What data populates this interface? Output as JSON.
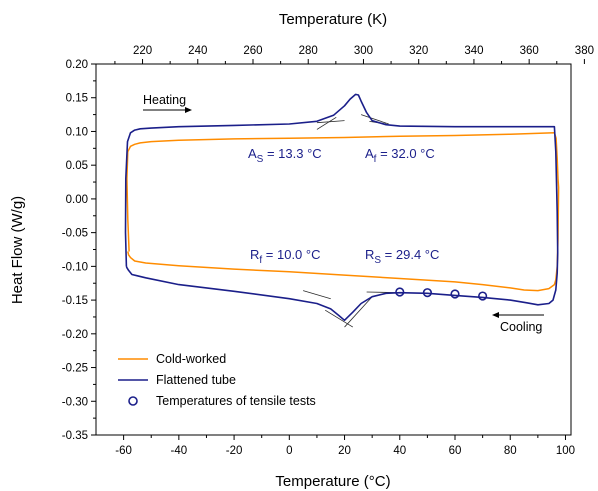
{
  "chart_data": {
    "type": "line",
    "xlabel": "Temperature (°C)",
    "ylabel": "Heat Flow (W/g)",
    "x2label": "Temperature (K)",
    "xlim": [
      -70,
      102
    ],
    "ylim": [
      -0.35,
      0.2
    ],
    "x_ticks": [
      "-60",
      "-40",
      "-20",
      "0",
      "20",
      "40",
      "60",
      "80",
      "100"
    ],
    "x_tick_values": [
      -60,
      -40,
      -20,
      0,
      20,
      40,
      60,
      80,
      100
    ],
    "y_ticks": [
      "0.20",
      "0.15",
      "0.10",
      "0.05",
      "0.00",
      "-0.05",
      "-0.10",
      "-0.15",
      "-0.20",
      "-0.25",
      "-0.30",
      "-0.35"
    ],
    "y_tick_values": [
      0.2,
      0.15,
      0.1,
      0.05,
      0.0,
      -0.05,
      -0.1,
      -0.15,
      -0.2,
      -0.25,
      -0.3,
      -0.35
    ],
    "x2_ticks": [
      "220",
      "240",
      "260",
      "280",
      "300",
      "320",
      "340",
      "360",
      "380"
    ],
    "x2_tick_values": [
      220,
      240,
      260,
      280,
      300,
      320,
      340,
      360,
      380
    ],
    "grid": false,
    "legend_position": "bottom-left",
    "series": [
      {
        "name": "Cold-worked",
        "color": "#ff8c00",
        "x": [
          -58,
          -58.5,
          -58.8,
          -58.5,
          -57.5,
          -56,
          -54,
          -50,
          -40,
          -20,
          0,
          20,
          40,
          60,
          80,
          96,
          96.6,
          97,
          97.3,
          97.5,
          97.3,
          97,
          96.5,
          96,
          94,
          90,
          85,
          80,
          70,
          60,
          40,
          20,
          0,
          -20,
          -40,
          -52,
          -56,
          -57.5,
          -58.2,
          -58.5
        ],
        "y": [
          -0.078,
          -0.03,
          0.03,
          0.07,
          0.078,
          0.081,
          0.083,
          0.085,
          0.087,
          0.089,
          0.09,
          0.091,
          0.093,
          0.094,
          0.096,
          0.098,
          0.09,
          0.06,
          0.03,
          0.017,
          -0.06,
          -0.1,
          -0.12,
          -0.127,
          -0.133,
          -0.136,
          -0.135,
          -0.132,
          -0.127,
          -0.123,
          -0.118,
          -0.113,
          -0.108,
          -0.104,
          -0.099,
          -0.095,
          -0.092,
          -0.087,
          -0.083,
          -0.078
        ]
      },
      {
        "name": "Flattened tube",
        "color": "#1b1f8a",
        "x": [
          -59,
          -59.3,
          -59.2,
          -58.6,
          -57.5,
          -56,
          -54,
          -50,
          -40,
          -20,
          0,
          10,
          16,
          20,
          22,
          24,
          25,
          26,
          28,
          30,
          35,
          40,
          60,
          80,
          96,
          96.5,
          97,
          97.2,
          97,
          96.5,
          95.5,
          94,
          90,
          86,
          80,
          70,
          60,
          50,
          40,
          35,
          30,
          26,
          23,
          21,
          20,
          18,
          15,
          10,
          0,
          -20,
          -40,
          -52,
          -55,
          -57,
          -58.2,
          -58.8,
          -59
        ],
        "y": [
          -0.1,
          -0.05,
          0.03,
          0.085,
          0.098,
          0.102,
          0.104,
          0.105,
          0.107,
          0.109,
          0.111,
          0.115,
          0.124,
          0.138,
          0.148,
          0.155,
          0.154,
          0.145,
          0.128,
          0.116,
          0.11,
          0.108,
          0.107,
          0.107,
          0.107,
          0.07,
          -0.02,
          -0.08,
          -0.11,
          -0.135,
          -0.15,
          -0.155,
          -0.157,
          -0.154,
          -0.15,
          -0.146,
          -0.143,
          -0.14,
          -0.139,
          -0.14,
          -0.145,
          -0.155,
          -0.168,
          -0.176,
          -0.18,
          -0.173,
          -0.163,
          -0.155,
          -0.148,
          -0.137,
          -0.127,
          -0.117,
          -0.114,
          -0.112,
          -0.106,
          -0.102,
          -0.1
        ]
      },
      {
        "name": "Temperatures of tensile tests",
        "color": "#1b1f8a",
        "type": "scatter",
        "x": [
          40,
          50,
          60,
          70
        ],
        "y": [
          -0.138,
          -0.139,
          -0.141,
          -0.144
        ]
      }
    ],
    "tangent_lines": [
      {
        "x": [
          10,
          20
        ],
        "y": [
          0.113,
          0.116
        ]
      },
      {
        "x": [
          10,
          17
        ],
        "y": [
          0.103,
          0.121
        ]
      },
      {
        "x": [
          29,
          35
        ],
        "y": [
          0.115,
          0.111
        ]
      },
      {
        "x": [
          26,
          36
        ],
        "y": [
          0.125,
          0.111
        ]
      },
      {
        "x": [
          5,
          15
        ],
        "y": [
          -0.136,
          -0.148
        ]
      },
      {
        "x": [
          13,
          23
        ],
        "y": [
          -0.165,
          -0.19
        ]
      },
      {
        "x": [
          20,
          30
        ],
        "y": [
          -0.19,
          -0.145
        ]
      },
      {
        "x": [
          28,
          40
        ],
        "y": [
          -0.138,
          -0.139
        ]
      }
    ],
    "annotations": {
      "heating": "Heating",
      "cooling": "Cooling",
      "as_main": "A",
      "as_sub": "S",
      "as_val": " = 13.3 °C",
      "af_main": "A",
      "af_sub": "f",
      "af_val": " = 32.0 °C",
      "rf_main": "R",
      "rf_sub": "f",
      "rf_val": " = 10.0 °C",
      "rs_main": "R",
      "rs_sub": "S",
      "rs_val": " = 29.4 °C"
    }
  }
}
